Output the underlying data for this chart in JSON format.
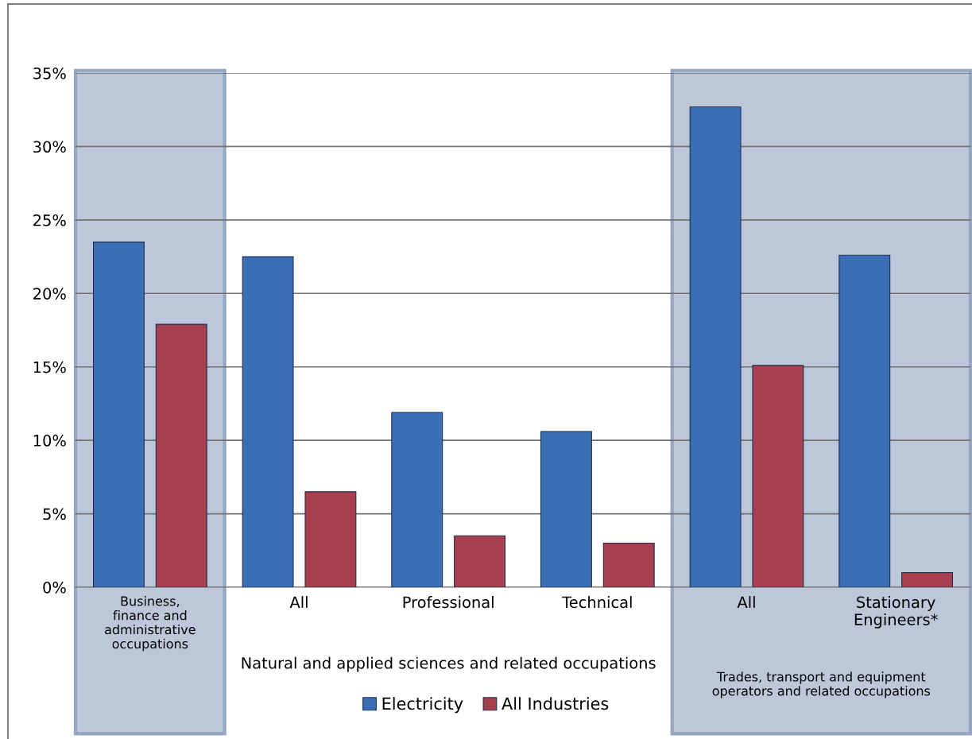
{
  "chart_data": {
    "type": "bar",
    "categories": [
      "Business,\nfinance and\nadministrative\noccupations",
      "All",
      "Professional",
      "Technical",
      "All",
      "Stationary\nEngineers*"
    ],
    "series": [
      {
        "name": "Electricity",
        "color": "#3a6fb6",
        "values": [
          23.5,
          22.5,
          11.9,
          10.6,
          32.7,
          22.6
        ]
      },
      {
        "name": "All Industries",
        "color": "#a8404f",
        "values": [
          17.9,
          6.5,
          3.5,
          3.0,
          15.1,
          1.0
        ]
      }
    ],
    "ylim": [
      0,
      35
    ],
    "yticks": [
      {
        "value": 0,
        "label": "0%"
      },
      {
        "value": 5,
        "label": "5%"
      },
      {
        "value": 10,
        "label": "10%"
      },
      {
        "value": 15,
        "label": "15%"
      },
      {
        "value": 20,
        "label": "20%"
      },
      {
        "value": 25,
        "label": "25%"
      },
      {
        "value": 30,
        "label": "30%"
      },
      {
        "value": 35,
        "label": "35%"
      }
    ],
    "annotations": [
      "Natural and applied sciences and related occupations",
      "Trades, transport and equipment\noperators and related occupations"
    ],
    "grid": "y",
    "legend": "bottom"
  }
}
